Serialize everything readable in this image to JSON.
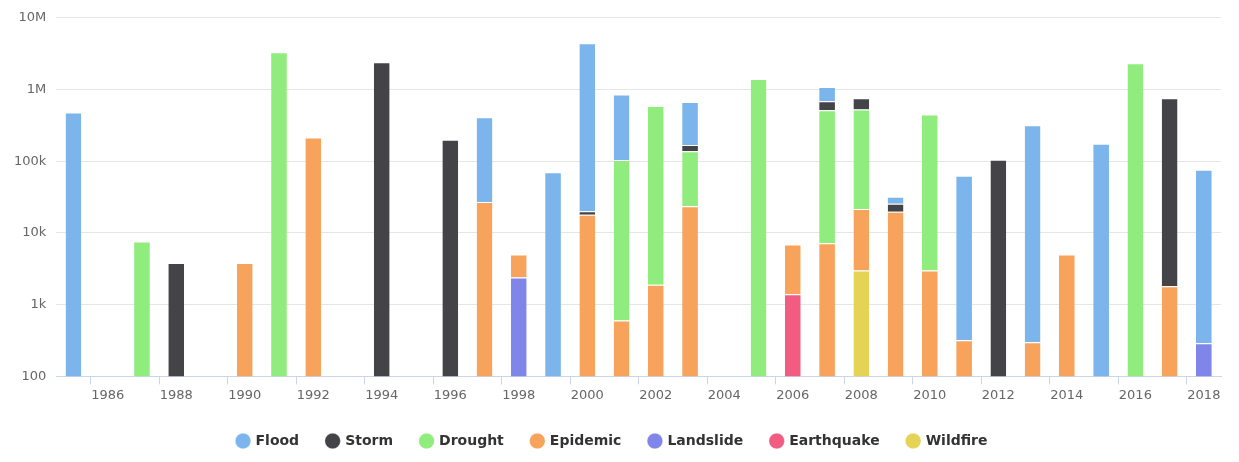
{
  "chart_data": {
    "type": "bar",
    "stacked": true,
    "log": "y",
    "grid": "y",
    "legend": "bottom",
    "categories": [
      null,
      "1986",
      null,
      "1988",
      null,
      "1990",
      null,
      "1992",
      null,
      "1994",
      null,
      "1996",
      null,
      "1998",
      null,
      "2000",
      null,
      "2002",
      null,
      "2004",
      null,
      "2006",
      null,
      "2008",
      null,
      "2010",
      null,
      "2012",
      null,
      "2014",
      null,
      "2016",
      null,
      "2018"
    ],
    "ylim": [
      100,
      10000000
    ],
    "yticks": [
      100,
      {
        "value": 1000,
        "label": "1k"
      },
      {
        "value": 10000,
        "label": "10k"
      },
      {
        "value": 100000,
        "label": "100k"
      },
      {
        "value": 1000000,
        "label": "1M"
      },
      {
        "value": 10000000,
        "label": "10M"
      }
    ],
    "series": [
      {
        "name": "Wildfire",
        "color": "#e4d354",
        "values": [
          null,
          null,
          null,
          null,
          null,
          null,
          null,
          null,
          null,
          null,
          null,
          null,
          null,
          null,
          null,
          null,
          null,
          null,
          null,
          null,
          null,
          null,
          null,
          3000,
          null,
          null,
          null,
          null,
          null,
          null,
          null,
          null,
          null,
          null
        ]
      },
      {
        "name": "Earthquake",
        "color": "#f15c80",
        "values": [
          null,
          null,
          null,
          null,
          null,
          null,
          null,
          null,
          null,
          null,
          null,
          null,
          null,
          null,
          null,
          null,
          null,
          null,
          null,
          null,
          null,
          1400,
          null,
          null,
          null,
          null,
          null,
          null,
          null,
          null,
          null,
          null,
          null,
          null
        ]
      },
      {
        "name": "Landslide",
        "color": "#8085e9",
        "values": [
          null,
          null,
          null,
          null,
          null,
          null,
          null,
          null,
          null,
          null,
          null,
          null,
          null,
          2400,
          null,
          null,
          null,
          null,
          null,
          null,
          null,
          null,
          null,
          null,
          null,
          null,
          null,
          null,
          null,
          null,
          null,
          null,
          null,
          290
        ]
      },
      {
        "name": "Epidemic",
        "color": "#f7a35c",
        "values": [
          null,
          null,
          null,
          null,
          null,
          3800,
          null,
          215000,
          null,
          null,
          null,
          null,
          27000,
          2600,
          null,
          18000,
          600,
          1900,
          23500,
          null,
          null,
          5500,
          7200,
          18600,
          19700,
          3000,
          320,
          null,
          300,
          5000,
          null,
          null,
          1800,
          null
        ]
      },
      {
        "name": "Drought",
        "color": "#90ed7d",
        "values": [
          null,
          null,
          7600,
          null,
          null,
          null,
          3300000,
          null,
          null,
          null,
          null,
          null,
          null,
          null,
          null,
          null,
          103400,
          588100,
          114500,
          null,
          1400000,
          null,
          508800,
          506400,
          null,
          447000,
          null,
          null,
          null,
          null,
          null,
          2330000,
          null,
          null
        ]
      },
      {
        "name": "Storm",
        "color": "#434348",
        "values": [
          null,
          null,
          null,
          3800,
          null,
          null,
          null,
          null,
          null,
          2400000,
          null,
          200000,
          null,
          null,
          null,
          2000,
          null,
          null,
          31000,
          null,
          null,
          null,
          171000,
          227000,
          5900,
          null,
          null,
          105000,
          null,
          null,
          null,
          null,
          753200,
          null
        ]
      },
      {
        "name": "Flood",
        "color": "#7cb5ec",
        "values": [
          480000,
          null,
          null,
          null,
          null,
          null,
          null,
          null,
          null,
          null,
          null,
          null,
          383000,
          null,
          70000,
          4380000,
          746000,
          null,
          501000,
          null,
          null,
          null,
          393000,
          null,
          6300,
          null,
          62680,
          null,
          317700,
          null,
          175000,
          null,
          null,
          75610
        ]
      }
    ]
  }
}
